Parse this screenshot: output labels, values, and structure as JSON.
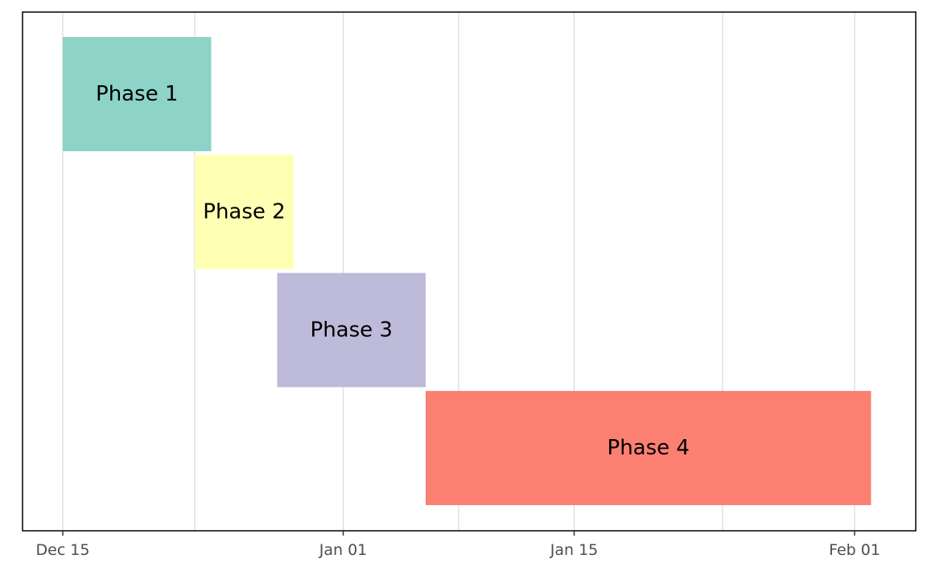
{
  "chart_data": {
    "type": "bar",
    "orientation": "horizontal",
    "subtype": "gantt",
    "title": "",
    "xlabel": "",
    "ylabel": "",
    "x_axis_type": "date",
    "xlim": [
      "2023-12-11",
      "2024-02-04"
    ],
    "x_ticks": [
      {
        "date": "2023-12-15",
        "label": "Dec 15"
      },
      {
        "date": "2024-01-01",
        "label": "Jan 01"
      },
      {
        "date": "2024-01-15",
        "label": "Jan 15"
      },
      {
        "date": "2024-02-01",
        "label": "Feb 01"
      }
    ],
    "minor_gridlines": [
      "2023-12-23",
      "2024-01-08",
      "2024-01-24"
    ],
    "grid": true,
    "legend": "none",
    "tasks": [
      {
        "label": "Phase 1",
        "start": "2023-12-15",
        "end": "2023-12-24",
        "color": "#8DD3C7"
      },
      {
        "label": "Phase 2",
        "start": "2023-12-23",
        "end": "2023-12-29",
        "color": "#FFFFB3"
      },
      {
        "label": "Phase 3",
        "start": "2023-12-28",
        "end": "2024-01-06",
        "color": "#BEBADA"
      },
      {
        "label": "Phase 4",
        "start": "2024-01-06",
        "end": "2024-02-02",
        "color": "#FB8072"
      }
    ]
  }
}
